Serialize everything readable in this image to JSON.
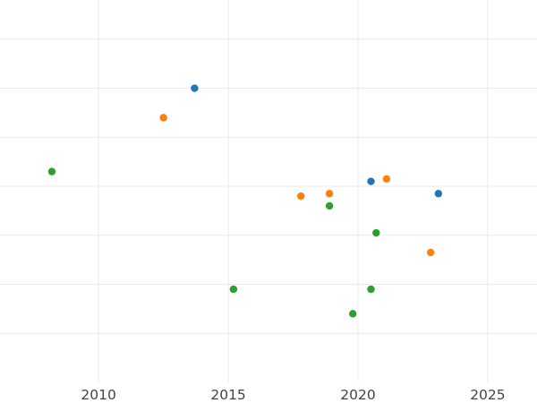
{
  "chart_data": {
    "type": "scatter",
    "title": "",
    "xlabel": "",
    "ylabel": "",
    "x_is_year": true,
    "xlim": [
      2006.2,
      2026.9
    ],
    "ylim": [
      0,
      7.8
    ],
    "xticks": [
      2010,
      2015,
      2020,
      2025
    ],
    "xtick_labels": [
      "2010",
      "2015",
      "2020",
      "2025"
    ],
    "y_gridlines": [
      1,
      2,
      3,
      4,
      5,
      6,
      7
    ],
    "grid": true,
    "legend": "none",
    "series": [
      {
        "color": "#1f77b4",
        "points": [
          {
            "x": 2013.7,
            "y": 6.0
          },
          {
            "x": 2020.5,
            "y": 4.1
          },
          {
            "x": 2023.1,
            "y": 3.85
          }
        ]
      },
      {
        "color": "#ff7f0e",
        "points": [
          {
            "x": 2012.5,
            "y": 5.4
          },
          {
            "x": 2017.8,
            "y": 3.8
          },
          {
            "x": 2018.9,
            "y": 3.85
          },
          {
            "x": 2021.1,
            "y": 4.15
          },
          {
            "x": 2022.8,
            "y": 2.65
          }
        ]
      },
      {
        "color": "#2ca02c",
        "points": [
          {
            "x": 2008.2,
            "y": 4.3
          },
          {
            "x": 2015.2,
            "y": 1.9
          },
          {
            "x": 2018.9,
            "y": 3.6
          },
          {
            "x": 2019.8,
            "y": 1.4
          },
          {
            "x": 2020.5,
            "y": 1.9
          },
          {
            "x": 2020.7,
            "y": 3.05
          }
        ]
      }
    ]
  }
}
